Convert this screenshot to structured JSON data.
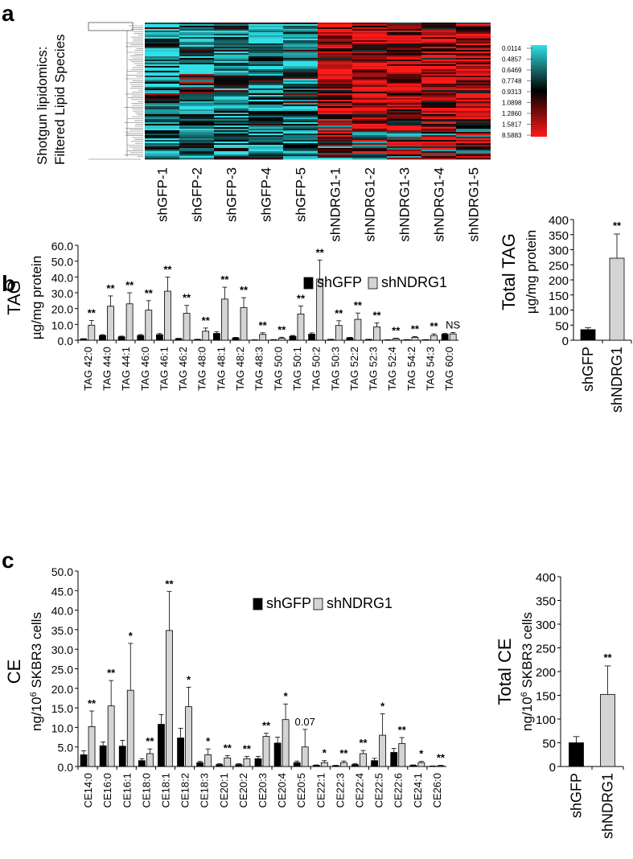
{
  "panels": {
    "a": {
      "letter": "a"
    },
    "b": {
      "letter": "b"
    },
    "c": {
      "letter": "c"
    }
  },
  "heatmap": {
    "ylabel_line1": "Shotgun lipidomics:",
    "ylabel_line2": "Filtered Lipid Species",
    "samples": [
      "shGFP-1",
      "shGFP-2",
      "shGFP-3",
      "shGFP-4",
      "shGFP-5",
      "shNDRG1-1",
      "shNDRG1-2",
      "shNDRG1-3",
      "shNDRG1-4",
      "shNDRG1-5"
    ],
    "scale_labels": [
      "0.0114",
      "0.4857",
      "0.6469",
      "0.7748",
      "0.9313",
      "1.0898",
      "1.2860",
      "1.5817",
      "8.5883"
    ],
    "colors": {
      "low": "#2fe0e6",
      "mid": "#000000",
      "high": "#ff1a1a"
    }
  },
  "chart_data": [
    {
      "id": "tag_species",
      "type": "bar",
      "title": "",
      "ylabel_line1": "TAG",
      "ylabel_line2": "µg/mg protein",
      "ylim": [
        0,
        60
      ],
      "yticks": [
        "0.0",
        "10.0",
        "20.0",
        "30.0",
        "40.0",
        "50.0",
        "60.0"
      ],
      "categories": [
        "TAG 42:0",
        "TAG 44:0",
        "TAG 44:1",
        "TAG 46:0",
        "TAG 46:1",
        "TAG 46:2",
        "TAG 48:0",
        "TAG 48:1",
        "TAG 48:2",
        "TAG 48:3",
        "TAG 50:0",
        "TAG 50:1",
        "TAG 50:2",
        "TAG 50:3",
        "TAG 52:2",
        "TAG 52:3",
        "TAG 52:4",
        "TAG 54:2",
        "TAG 54:3",
        "TAG 60:0"
      ],
      "series": [
        {
          "name": "shGFP",
          "color": "#000000",
          "values": [
            0.8,
            3.0,
            2.2,
            3.0,
            3.5,
            1.0,
            0.5,
            4.3,
            1.5,
            0.2,
            0.3,
            2.5,
            3.8,
            0.5,
            1.5,
            0.5,
            0.2,
            0.3,
            0.3,
            3.8
          ],
          "errors": [
            0.2,
            0.5,
            0.4,
            0.6,
            0.7,
            0.2,
            0.1,
            1.0,
            0.3,
            0.1,
            0.1,
            0.5,
            0.8,
            0.1,
            0.3,
            0.1,
            0.1,
            0.1,
            0.1,
            0.6
          ]
        },
        {
          "name": "shNDRG1",
          "color": "#d4d4d4",
          "values": [
            9.5,
            21.5,
            23.0,
            19.0,
            31.0,
            17.0,
            5.7,
            26.0,
            20.7,
            3.7,
            1.3,
            16.6,
            38.7,
            9.3,
            13.2,
            8.5,
            1.0,
            1.8,
            3.0,
            4.0
          ],
          "errors": [
            3.0,
            6.5,
            7.0,
            6.0,
            9.0,
            5.0,
            2.0,
            7.5,
            6.2,
            1.0,
            0.6,
            5.0,
            12.0,
            3.0,
            4.0,
            2.5,
            0.3,
            0.5,
            1.0,
            0.8
          ]
        }
      ],
      "annotations": [
        "**",
        "**",
        "**",
        "**",
        "**",
        "**",
        "**",
        "**",
        "**",
        "**",
        "**",
        "**",
        "**",
        "**",
        "**",
        "**",
        "**",
        "**",
        "**",
        "NS"
      ],
      "legend": "top-center"
    },
    {
      "id": "tag_total",
      "type": "bar",
      "ylabel_line1": "Total TAG",
      "ylabel_line2": "µg/mg protein",
      "ylim": [
        0,
        400
      ],
      "yticks": [
        "0",
        "50",
        "100",
        "150",
        "200",
        "250",
        "300",
        "350",
        "400"
      ],
      "categories": [
        "shGFP",
        "shNDRG1"
      ],
      "values": [
        35,
        272
      ],
      "errors": [
        7,
        80
      ],
      "colors": [
        "#000000",
        "#d4d4d4"
      ],
      "annotations": [
        "",
        "**"
      ]
    },
    {
      "id": "ce_species",
      "type": "bar",
      "ylabel_line1": "CE",
      "ylabel_line2_pre": "ng/10",
      "ylabel_line2_sup": "6",
      "ylabel_line2_post": " SKBR3 cells",
      "ylim": [
        0,
        50
      ],
      "yticks": [
        "0.0",
        "5.0",
        "10.0",
        "15.0",
        "20.0",
        "25.0",
        "30.0",
        "35.0",
        "40.0",
        "45.0",
        "50.0"
      ],
      "categories": [
        "CE14:0",
        "CE16:0",
        "CE16:1",
        "CE18:0",
        "CE18:1",
        "CE18:2",
        "CE18:3",
        "CE20:1",
        "CE20:2",
        "CE20:3",
        "CE20:4",
        "CE20:5",
        "CE22:1",
        "CE22:3",
        "CE22:4",
        "CE22:5",
        "CE22:6",
        "CE24:1",
        "CE26:0"
      ],
      "series": [
        {
          "name": "shGFP",
          "color": "#000000",
          "values": [
            3.0,
            5.3,
            5.2,
            1.5,
            10.8,
            7.3,
            1.0,
            0.5,
            0.5,
            2.0,
            6.0,
            1.0,
            0.3,
            0.2,
            0.5,
            1.5,
            3.6,
            0.3,
            0.1
          ],
          "errors": [
            1.0,
            1.0,
            1.5,
            0.5,
            2.5,
            2.5,
            0.3,
            0.2,
            0.2,
            0.6,
            1.5,
            0.4,
            0.1,
            0.1,
            0.2,
            0.6,
            1.0,
            0.1,
            0.05
          ]
        },
        {
          "name": "shNDRG1",
          "color": "#d4d4d4",
          "values": [
            10.2,
            15.5,
            19.5,
            3.3,
            34.8,
            15.3,
            3.0,
            2.2,
            2.0,
            7.7,
            12.0,
            5.0,
            1.0,
            1.0,
            3.3,
            8.0,
            5.9,
            1.0,
            0.2
          ],
          "errors": [
            4.0,
            6.5,
            12.0,
            1.2,
            10.0,
            5.0,
            1.5,
            0.6,
            0.6,
            0.8,
            4.0,
            4.5,
            0.5,
            0.4,
            0.8,
            5.5,
            1.5,
            0.3,
            0.1
          ]
        }
      ],
      "annotations": [
        "**",
        "**",
        "*",
        "**",
        "**",
        "*",
        "*",
        "**",
        "**",
        "**",
        "*",
        "0.07",
        "*",
        "**",
        "**",
        "*",
        "**",
        "*",
        "**"
      ],
      "legend": "top-center"
    },
    {
      "id": "ce_total",
      "type": "bar",
      "ylabel_line1": "Total CE",
      "ylabel_line2_pre": "ng/10",
      "ylabel_line2_sup": "6",
      "ylabel_line2_post": " SKBR3 cells",
      "ylim": [
        0,
        400
      ],
      "yticks": [
        "0",
        "50",
        "100",
        "150",
        "200",
        "250",
        "300",
        "350",
        "400"
      ],
      "categories": [
        "shGFP",
        "shNDRG1"
      ],
      "values": [
        50,
        152
      ],
      "errors": [
        13,
        60
      ],
      "colors": [
        "#000000",
        "#d4d4d4"
      ],
      "annotations": [
        "",
        "**"
      ]
    }
  ]
}
